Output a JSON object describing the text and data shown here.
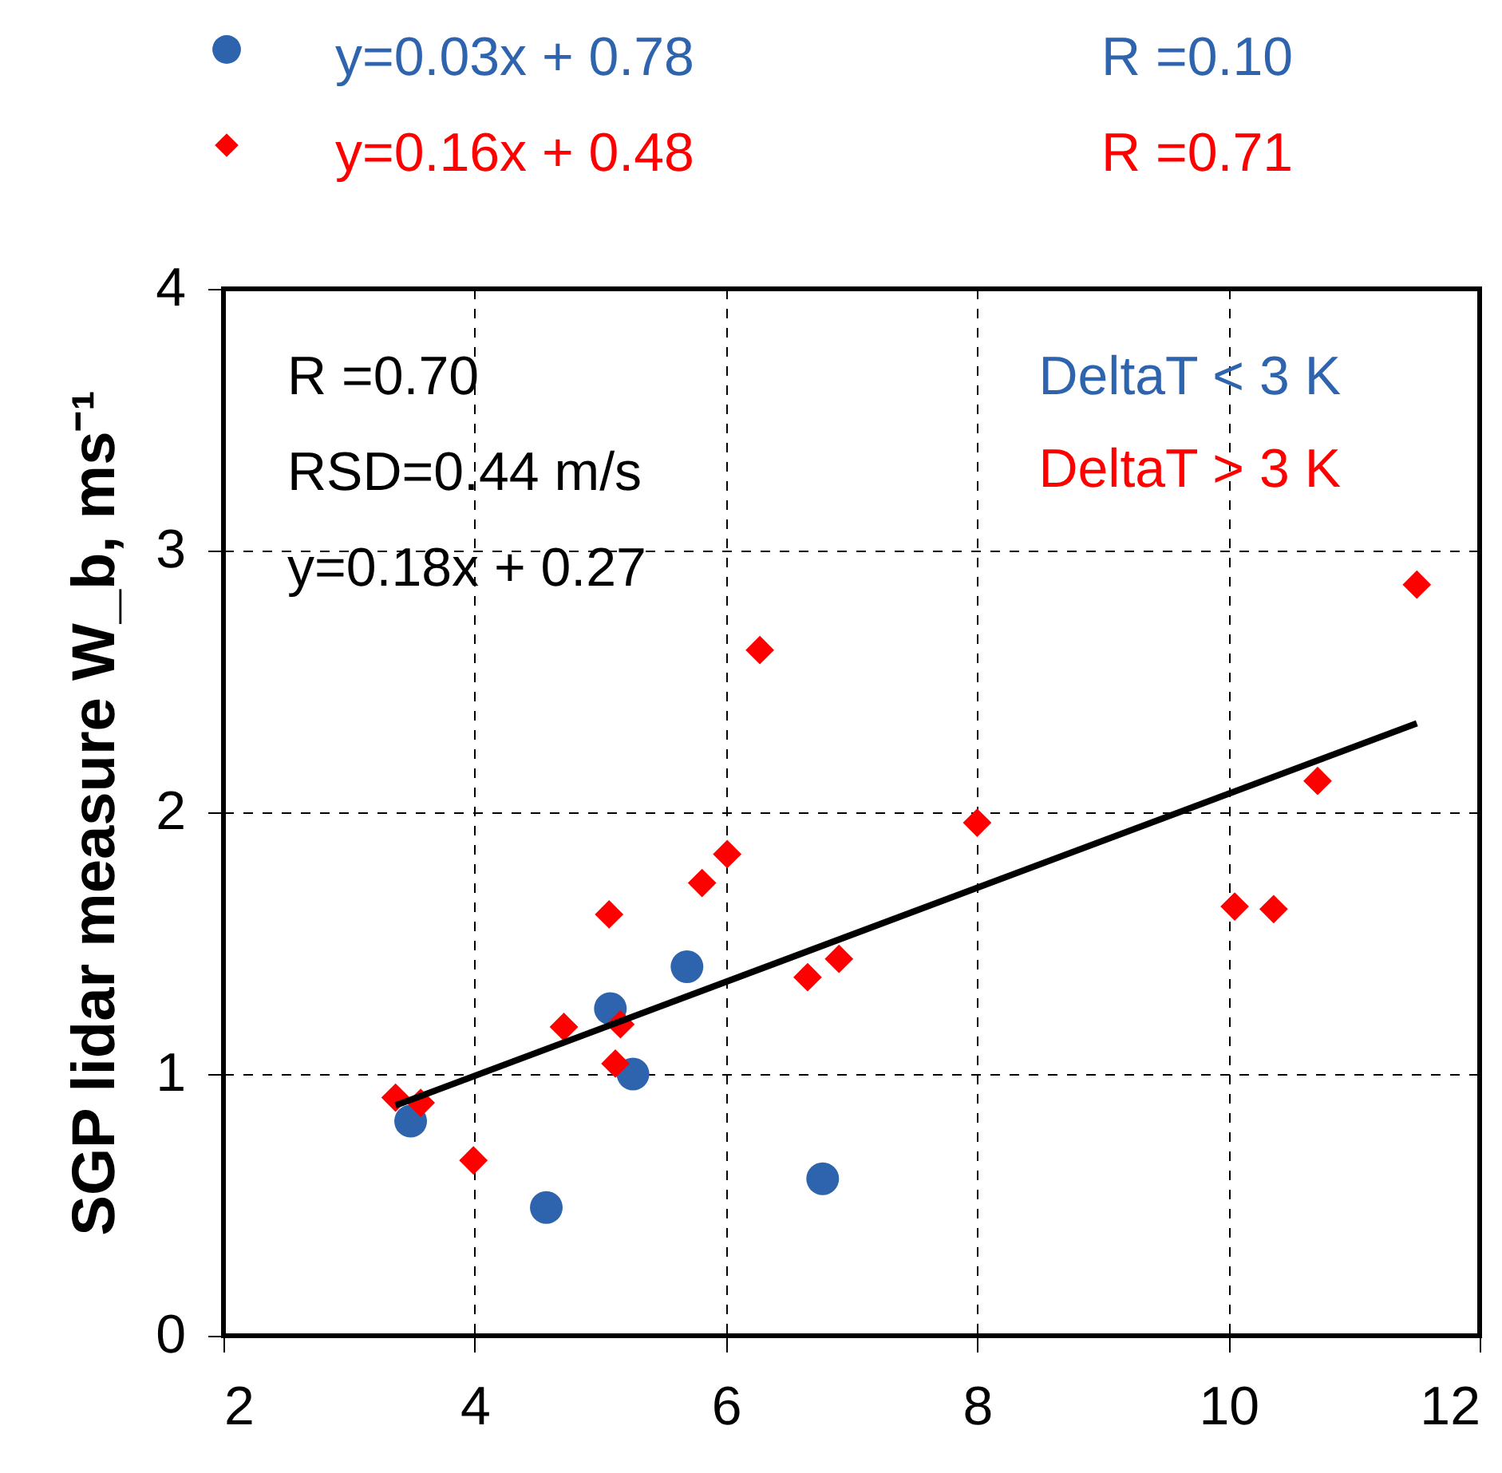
{
  "chart_data": {
    "type": "scatter",
    "ylabel": "SGP lidar measure W_b, ms⁻¹",
    "xlim": [
      2,
      12
    ],
    "xticks": [
      2,
      4,
      6,
      8,
      10,
      12
    ],
    "ylim": [
      0,
      4
    ],
    "yticks": [
      0,
      1,
      2,
      3,
      4
    ],
    "grid": true,
    "legend": "top right",
    "annotations": [
      "R =0.70",
      "RSD=0.44 m/s",
      "y=0.18x + 0.27",
      "y=0.03x + 0.78",
      "R =0.10",
      "y=0.16x + 0.48",
      "R =0.71"
    ],
    "series": [
      {
        "name": "DeltaT < 3 K",
        "color": "#2e64ae",
        "marker": "circle",
        "x": [
          3.49,
          4.57,
          5.08,
          5.26,
          5.69,
          6.77
        ],
        "values": [
          0.82,
          0.49,
          1.25,
          1.0,
          1.41,
          0.6
        ]
      },
      {
        "name": "DeltaT > 3 K",
        "color": "#ff0000",
        "marker": "diamond",
        "x": [
          3.37,
          3.57,
          3.99,
          4.71,
          5.07,
          5.16,
          5.12,
          5.81,
          6.01,
          6.27,
          6.65,
          6.9,
          8.0,
          10.05,
          10.36,
          10.71,
          11.5
        ],
        "values": [
          0.91,
          0.89,
          0.67,
          1.18,
          1.61,
          1.19,
          1.04,
          1.73,
          1.84,
          2.62,
          1.37,
          1.44,
          1.96,
          1.64,
          1.63,
          2.12,
          2.87
        ]
      },
      {
        "type": "line",
        "color": "#000000",
        "line_style": "solid",
        "x": [
          3.37,
          11.5
        ],
        "values": [
          0.88,
          2.34
        ]
      }
    ]
  }
}
